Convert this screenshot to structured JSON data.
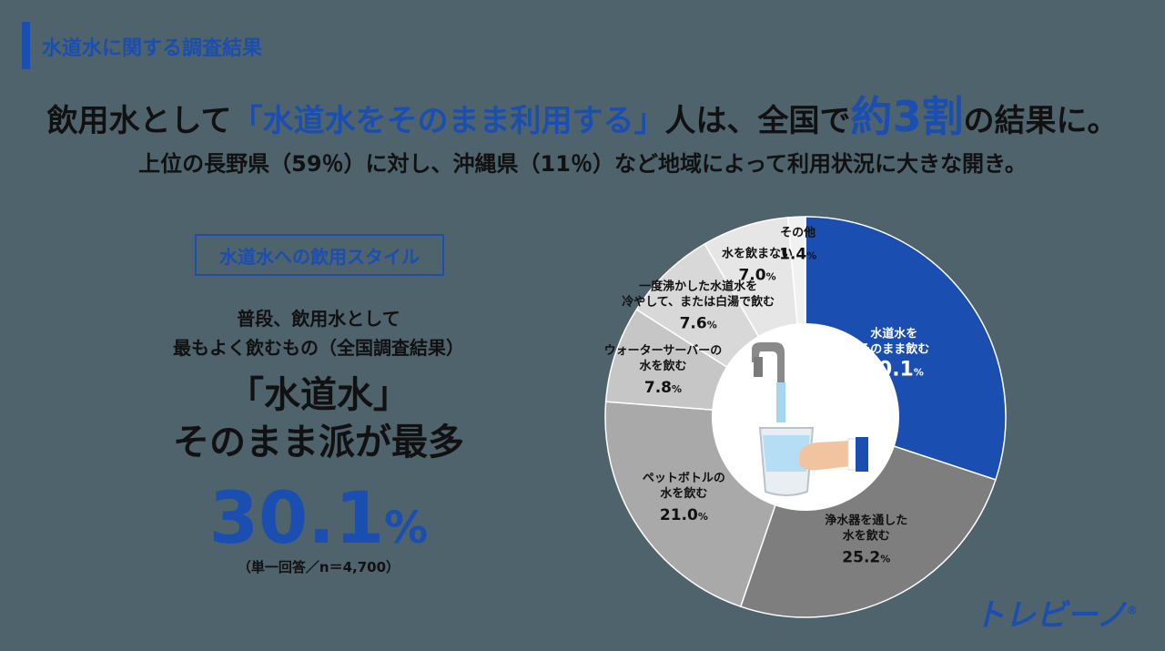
{
  "section_label": "水道水に関する調査結果",
  "headline": {
    "part1": "飲用水として",
    "part2": "「水道水をそのまま利用する」",
    "part3": "人は、全国で",
    "part4": "約3割",
    "part5": "の結果に。"
  },
  "subline": "上位の長野県（59％）に対し、沖縄県（11％）など地域によって利用状況に大きな開き。",
  "style_box": "水道水への飲用スタイル",
  "desc_line1": "普段、飲用水として",
  "desc_line2": "最もよく飲むもの（全国調査結果）",
  "claim_line1": "「水道水」",
  "claim_line2": "そのまま派が最多",
  "big_value": "30.1",
  "big_unit": "%",
  "note": "（単一回答／n＝4,700）",
  "brand": "トレビーノ",
  "brand_mark": "®",
  "colors": {
    "background": "#4f636d",
    "accent": "#1a4eb0"
  },
  "chart_data": {
    "type": "pie",
    "style": "donut",
    "center_image": "faucet-and-glass-illustration",
    "slices": [
      {
        "label_lines": [
          "水道水を",
          "そのまま飲む"
        ],
        "value": 30.1,
        "color": "#1a4eb0",
        "text_color": "#ffffff"
      },
      {
        "label_lines": [
          "浄水器を通した",
          "水を飲む"
        ],
        "value": 25.2,
        "color": "#7e7e7e",
        "text_color": "#111111"
      },
      {
        "label_lines": [
          "ペットボトルの",
          "水を飲む"
        ],
        "value": 21.0,
        "color": "#a9a9a9",
        "text_color": "#111111"
      },
      {
        "label_lines": [
          "ウォーターサーバーの",
          "水を飲む"
        ],
        "value": 7.8,
        "color": "#c6c6c6",
        "text_color": "#111111"
      },
      {
        "label_lines": [
          "一度沸かした水道水を",
          "冷やして、または白湯で飲む"
        ],
        "value": 7.6,
        "color": "#d8d8d8",
        "text_color": "#111111"
      },
      {
        "label_lines": [
          "水を飲まない"
        ],
        "value": 7.0,
        "color": "#e6e6e6",
        "text_color": "#111111"
      },
      {
        "label_lines": [
          "その他"
        ],
        "value": 1.4,
        "color": "#f1f1f1",
        "text_color": "#111111"
      }
    ],
    "value_unit": "%"
  }
}
